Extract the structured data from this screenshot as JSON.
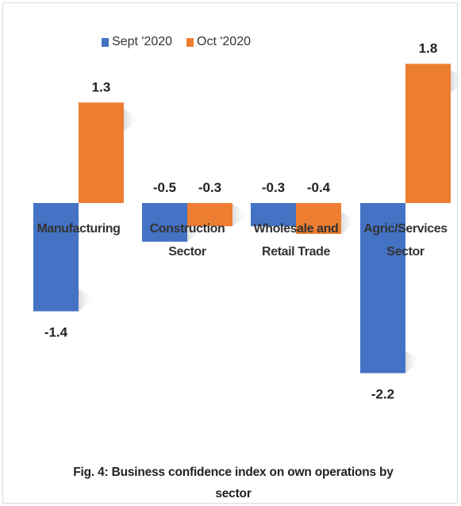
{
  "chart_data": {
    "type": "bar",
    "categories": [
      "Manufacturing",
      "Construction Sector",
      "Wholesale and Retail Trade",
      "Agric/Services Sector"
    ],
    "category_lines": [
      [
        "Manufacturing"
      ],
      [
        "Construction",
        "Sector"
      ],
      [
        "Wholesale and",
        "Retail Trade"
      ],
      [
        "Agric/Services",
        "Sector"
      ]
    ],
    "series": [
      {
        "name": "Sept '2020",
        "color": "#4472c4",
        "values": [
          -1.4,
          -0.5,
          -0.3,
          -2.2
        ]
      },
      {
        "name": "Oct '2020",
        "color": "#ed7d31",
        "values": [
          1.3,
          -0.3,
          -0.4,
          1.8
        ]
      }
    ],
    "value_labels": [
      [
        "-1.4",
        "-0.5",
        "-0.3",
        "-2.2"
      ],
      [
        "1.3",
        "-0.3",
        "-0.4",
        "1.8"
      ]
    ],
    "ylim": [
      -2.2,
      1.8
    ],
    "grid": false,
    "legend_position": "top-left",
    "title": "Fig. 4: Business confidence index on own operations by sector"
  },
  "caption": {
    "line1": "Fig. 4: Business confidence index on own operations by",
    "line2": "sector"
  }
}
